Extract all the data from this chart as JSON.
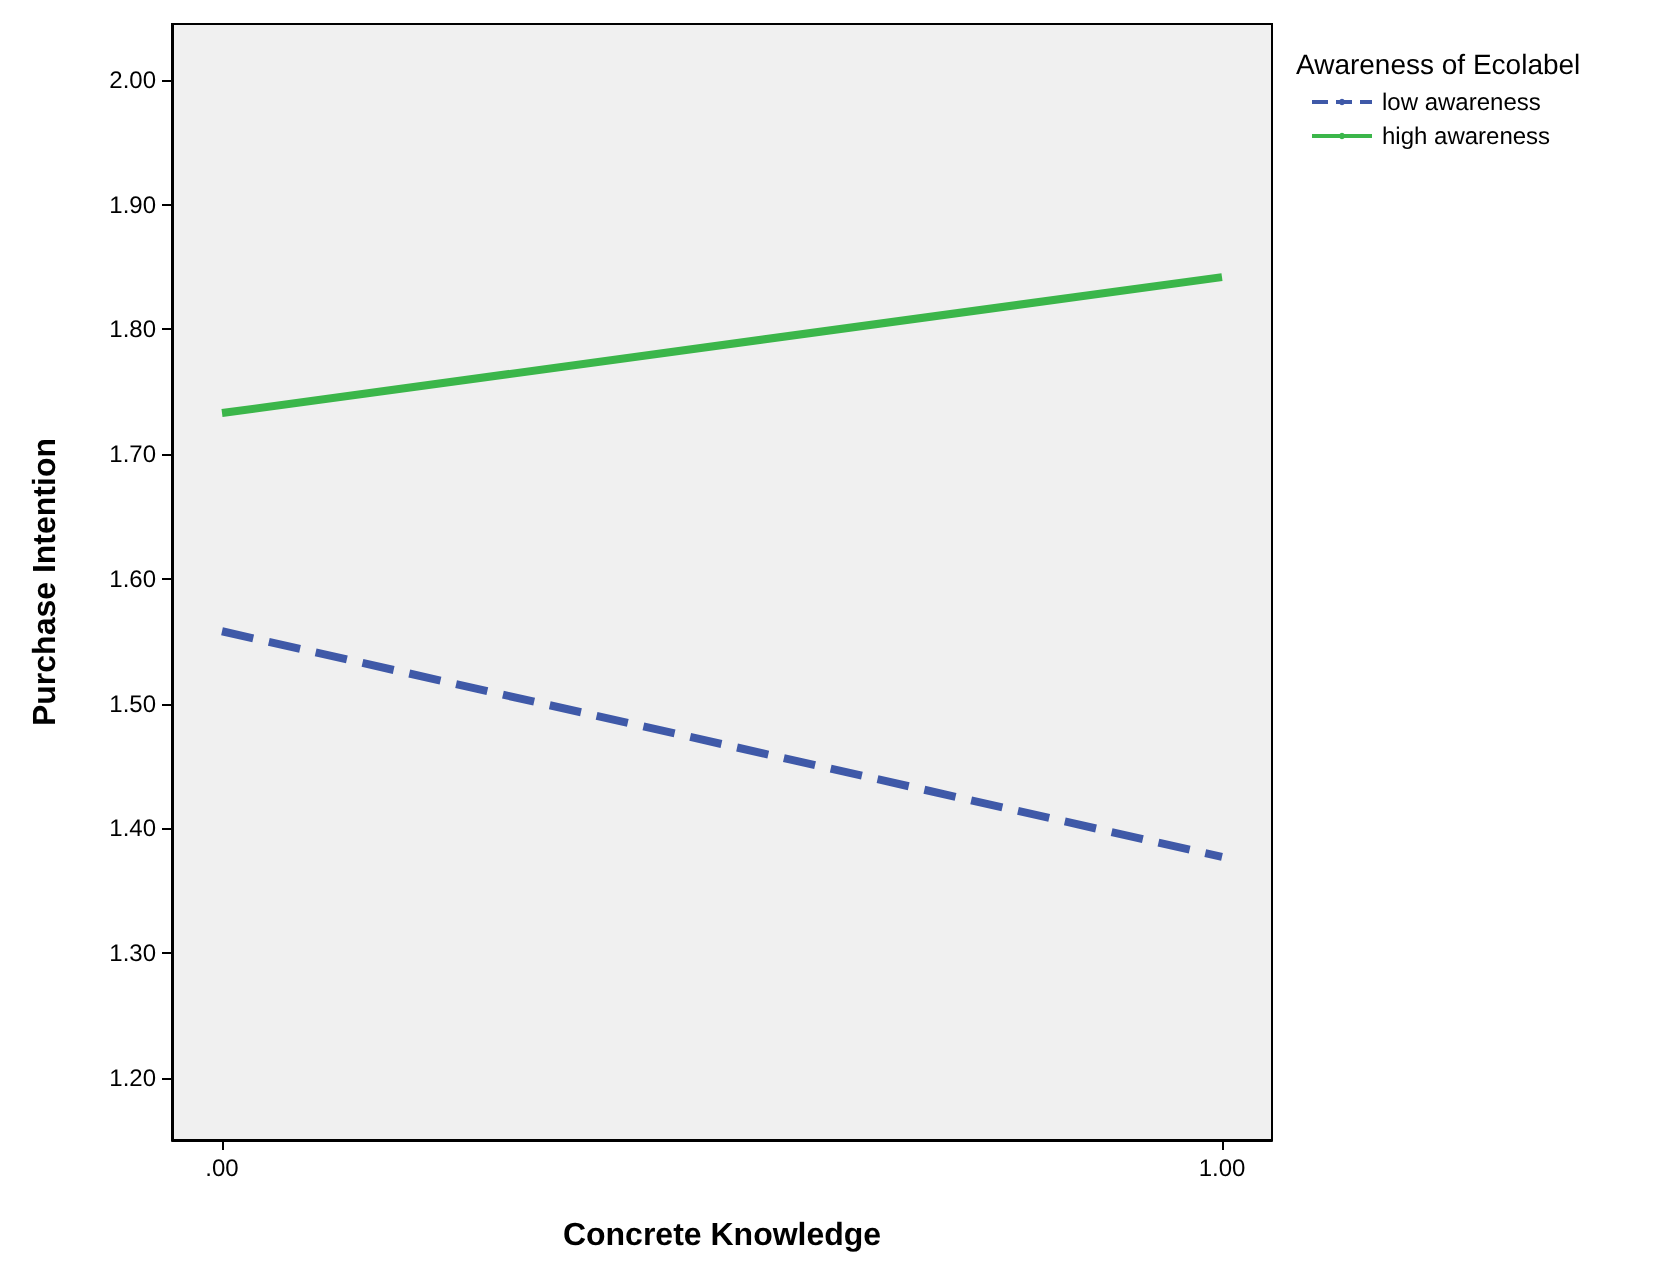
{
  "chart_data": {
    "type": "line",
    "xlabel": "Concrete Knowledge",
    "ylabel": "Purchase Intention",
    "legend_title": "Awareness of Ecolabel",
    "x": [
      0,
      1
    ],
    "series": [
      {
        "name": "low awareness",
        "color": "#3f59a8",
        "values": [
          1.558,
          1.377
        ],
        "line_style": "dashed"
      },
      {
        "name": "high awareness",
        "color": "#3bb64a",
        "values": [
          1.733,
          1.842
        ],
        "line_style": "solid"
      }
    ],
    "xlim": [
      -0.05,
      1.05
    ],
    "xticks": [
      {
        "value": 0,
        "label": ".00"
      },
      {
        "value": 1,
        "label": "1.00"
      }
    ],
    "ylim": [
      1.15,
      2.045
    ],
    "yticks": [
      {
        "value": 1.2,
        "label": "1.20"
      },
      {
        "value": 1.3,
        "label": "1.30"
      },
      {
        "value": 1.4,
        "label": "1.40"
      },
      {
        "value": 1.5,
        "label": "1.50"
      },
      {
        "value": 1.6,
        "label": "1.60"
      },
      {
        "value": 1.7,
        "label": "1.70"
      },
      {
        "value": 1.8,
        "label": "1.80"
      },
      {
        "value": 1.9,
        "label": "1.90"
      },
      {
        "value": 2.0,
        "label": "2.00"
      }
    ],
    "grid": false,
    "legend": "top right",
    "marker": "none"
  }
}
